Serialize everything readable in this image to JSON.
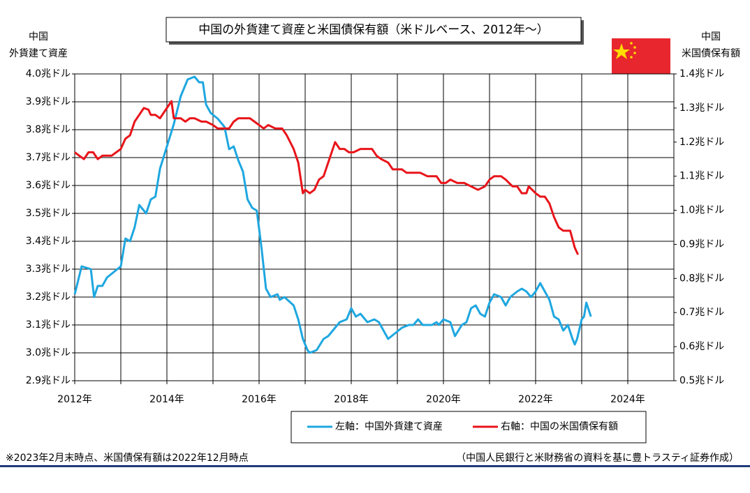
{
  "chart_data": {
    "type": "line",
    "title": "中国の外貨建て資産と米国債保有額（米ドルベース、2012年～）",
    "ylabel": [
      "中国",
      "外貨建て資産"
    ],
    "y2label": [
      "中国",
      "米国債保有額"
    ],
    "xlim": [
      2012,
      2025
    ],
    "xticks": [
      {
        "value": 2012,
        "label": "2012年"
      },
      {
        "value": 2014,
        "label": "2014年"
      },
      {
        "value": 2016,
        "label": "2016年"
      },
      {
        "value": 2018,
        "label": "2018年"
      },
      {
        "value": 2020,
        "label": "2020年"
      },
      {
        "value": 2022,
        "label": "2022年"
      },
      {
        "value": 2024,
        "label": "2024年"
      }
    ],
    "xminor_ticks": [
      2013,
      2015,
      2017,
      2019,
      2021,
      2023
    ],
    "ylim": [
      2.9,
      4.0
    ],
    "yticks": [
      {
        "value": 2.9,
        "label": "2.9兆ドル"
      },
      {
        "value": 3.0,
        "label": "3.0兆ドル"
      },
      {
        "value": 3.1,
        "label": "3.1兆ドル"
      },
      {
        "value": 3.2,
        "label": "3.2兆ドル"
      },
      {
        "value": 3.3,
        "label": "3.3兆ドル"
      },
      {
        "value": 3.4,
        "label": "3.4兆ドル"
      },
      {
        "value": 3.5,
        "label": "3.5兆ドル"
      },
      {
        "value": 3.6,
        "label": "3.6兆ドル"
      },
      {
        "value": 3.7,
        "label": "3.7兆ドル"
      },
      {
        "value": 3.8,
        "label": "3.8兆ドル"
      },
      {
        "value": 3.9,
        "label": "3.9兆ドル"
      },
      {
        "value": 4.0,
        "label": "4.0兆ドル"
      }
    ],
    "y2lim": [
      0.5,
      1.4
    ],
    "y2ticks": [
      {
        "value": 0.5,
        "label": "0.5兆ドル"
      },
      {
        "value": 0.6,
        "label": "0.6兆ドル"
      },
      {
        "value": 0.7,
        "label": "0.7兆ドル"
      },
      {
        "value": 0.8,
        "label": "0.8兆ドル"
      },
      {
        "value": 0.9,
        "label": "0.9兆ドル"
      },
      {
        "value": 1.0,
        "label": "1.0兆ドル"
      },
      {
        "value": 1.1,
        "label": "1.1兆ドル"
      },
      {
        "value": 1.2,
        "label": "1.2兆ドル"
      },
      {
        "value": 1.3,
        "label": "1.3兆ドル"
      },
      {
        "value": 1.4,
        "label": "1.4兆ドル"
      }
    ],
    "grid": true,
    "legend": "bottom",
    "series": [
      {
        "name": "左軸：中国外貨建て資産",
        "color": "#1ea7e0",
        "axis": "y",
        "x": [
          2012.0,
          2012.15,
          2012.35,
          2012.42,
          2012.5,
          2012.6,
          2012.7,
          2012.85,
          2013.0,
          2013.1,
          2013.2,
          2013.3,
          2013.4,
          2013.55,
          2013.65,
          2013.75,
          2013.85,
          2014.0,
          2014.15,
          2014.3,
          2014.45,
          2014.6,
          2014.7,
          2014.78,
          2014.85,
          2014.95,
          2015.1,
          2015.25,
          2015.35,
          2015.45,
          2015.55,
          2015.65,
          2015.75,
          2015.85,
          2015.95,
          2016.05,
          2016.15,
          2016.25,
          2016.4,
          2016.45,
          2016.55,
          2016.75,
          2016.85,
          2016.95,
          2017.05,
          2017.1,
          2017.25,
          2017.4,
          2017.5,
          2017.6,
          2017.75,
          2017.9,
          2018.0,
          2018.1,
          2018.2,
          2018.35,
          2018.5,
          2018.6,
          2018.8,
          2018.95,
          2019.1,
          2019.25,
          2019.35,
          2019.45,
          2019.55,
          2019.65,
          2019.75,
          2019.85,
          2019.9,
          2020.0,
          2020.15,
          2020.25,
          2020.4,
          2020.5,
          2020.6,
          2020.7,
          2020.8,
          2020.9,
          2021.0,
          2021.1,
          2021.25,
          2021.35,
          2021.45,
          2021.6,
          2021.7,
          2021.8,
          2021.9,
          2022.0,
          2022.1,
          2022.2,
          2022.3,
          2022.4,
          2022.5,
          2022.6,
          2022.7,
          2022.8,
          2022.85,
          2022.9,
          2023.0,
          2023.05,
          2023.1,
          2023.2
        ],
        "values": [
          3.21,
          3.31,
          3.3,
          3.2,
          3.24,
          3.24,
          3.27,
          3.29,
          3.31,
          3.41,
          3.4,
          3.45,
          3.53,
          3.5,
          3.55,
          3.56,
          3.66,
          3.74,
          3.82,
          3.92,
          3.98,
          3.99,
          3.97,
          3.97,
          3.89,
          3.86,
          3.84,
          3.81,
          3.73,
          3.74,
          3.69,
          3.65,
          3.55,
          3.52,
          3.51,
          3.38,
          3.23,
          3.2,
          3.21,
          3.19,
          3.2,
          3.17,
          3.12,
          3.05,
          3.01,
          3.0,
          3.01,
          3.05,
          3.06,
          3.08,
          3.11,
          3.12,
          3.16,
          3.13,
          3.14,
          3.11,
          3.12,
          3.11,
          3.05,
          3.07,
          3.09,
          3.1,
          3.1,
          3.12,
          3.1,
          3.1,
          3.1,
          3.11,
          3.1,
          3.12,
          3.11,
          3.06,
          3.1,
          3.11,
          3.16,
          3.17,
          3.14,
          3.13,
          3.18,
          3.21,
          3.2,
          3.17,
          3.2,
          3.22,
          3.23,
          3.22,
          3.2,
          3.22,
          3.25,
          3.22,
          3.19,
          3.13,
          3.12,
          3.08,
          3.1,
          3.05,
          3.03,
          3.05,
          3.12,
          3.13,
          3.18,
          3.13
        ]
      },
      {
        "name": "右軸：中国の米国債保有額",
        "color": "#e8141a",
        "axis": "y2",
        "x": [
          2012.0,
          2012.1,
          2012.2,
          2012.3,
          2012.4,
          2012.5,
          2012.6,
          2012.7,
          2012.8,
          2012.9,
          2013.0,
          2013.1,
          2013.2,
          2013.3,
          2013.4,
          2013.5,
          2013.6,
          2013.65,
          2013.75,
          2013.85,
          2014.0,
          2014.1,
          2014.15,
          2014.3,
          2014.4,
          2014.5,
          2014.6,
          2014.75,
          2014.85,
          2015.0,
          2015.1,
          2015.2,
          2015.35,
          2015.45,
          2015.55,
          2015.7,
          2015.8,
          2015.9,
          2016.0,
          2016.1,
          2016.2,
          2016.35,
          2016.5,
          2016.6,
          2016.75,
          2016.85,
          2016.95,
          2017.0,
          2017.1,
          2017.2,
          2017.3,
          2017.4,
          2017.5,
          2017.65,
          2017.75,
          2017.85,
          2017.95,
          2018.05,
          2018.2,
          2018.3,
          2018.45,
          2018.55,
          2018.65,
          2018.8,
          2018.9,
          2019.1,
          2019.2,
          2019.35,
          2019.5,
          2019.65,
          2019.85,
          2019.95,
          2020.05,
          2020.15,
          2020.3,
          2020.45,
          2020.6,
          2020.75,
          2020.9,
          2021.0,
          2021.1,
          2021.25,
          2021.35,
          2021.5,
          2021.6,
          2021.7,
          2021.8,
          2021.85,
          2022.0,
          2022.1,
          2022.2,
          2022.3,
          2022.4,
          2022.5,
          2022.6,
          2022.75,
          2022.85,
          2022.92
        ],
        "values": [
          1.17,
          1.16,
          1.15,
          1.17,
          1.17,
          1.15,
          1.16,
          1.16,
          1.16,
          1.17,
          1.18,
          1.21,
          1.22,
          1.26,
          1.28,
          1.3,
          1.295,
          1.28,
          1.28,
          1.27,
          1.3,
          1.32,
          1.27,
          1.27,
          1.26,
          1.27,
          1.27,
          1.26,
          1.26,
          1.25,
          1.24,
          1.24,
          1.24,
          1.26,
          1.27,
          1.27,
          1.27,
          1.26,
          1.25,
          1.24,
          1.25,
          1.24,
          1.24,
          1.22,
          1.18,
          1.14,
          1.05,
          1.06,
          1.05,
          1.06,
          1.09,
          1.1,
          1.14,
          1.2,
          1.18,
          1.18,
          1.17,
          1.17,
          1.18,
          1.18,
          1.18,
          1.16,
          1.15,
          1.14,
          1.12,
          1.12,
          1.11,
          1.11,
          1.11,
          1.1,
          1.1,
          1.08,
          1.08,
          1.09,
          1.08,
          1.08,
          1.07,
          1.06,
          1.07,
          1.09,
          1.1,
          1.1,
          1.09,
          1.07,
          1.07,
          1.05,
          1.05,
          1.07,
          1.05,
          1.04,
          1.04,
          1.02,
          0.98,
          0.95,
          0.94,
          0.94,
          0.89,
          0.87
        ]
      }
    ],
    "footnote": "※2023年2月末時点、米国債保有額は2022年12月時点",
    "source": "（中国人民銀行と米財務省の資料を基に豊トラスティ証券作成）"
  }
}
